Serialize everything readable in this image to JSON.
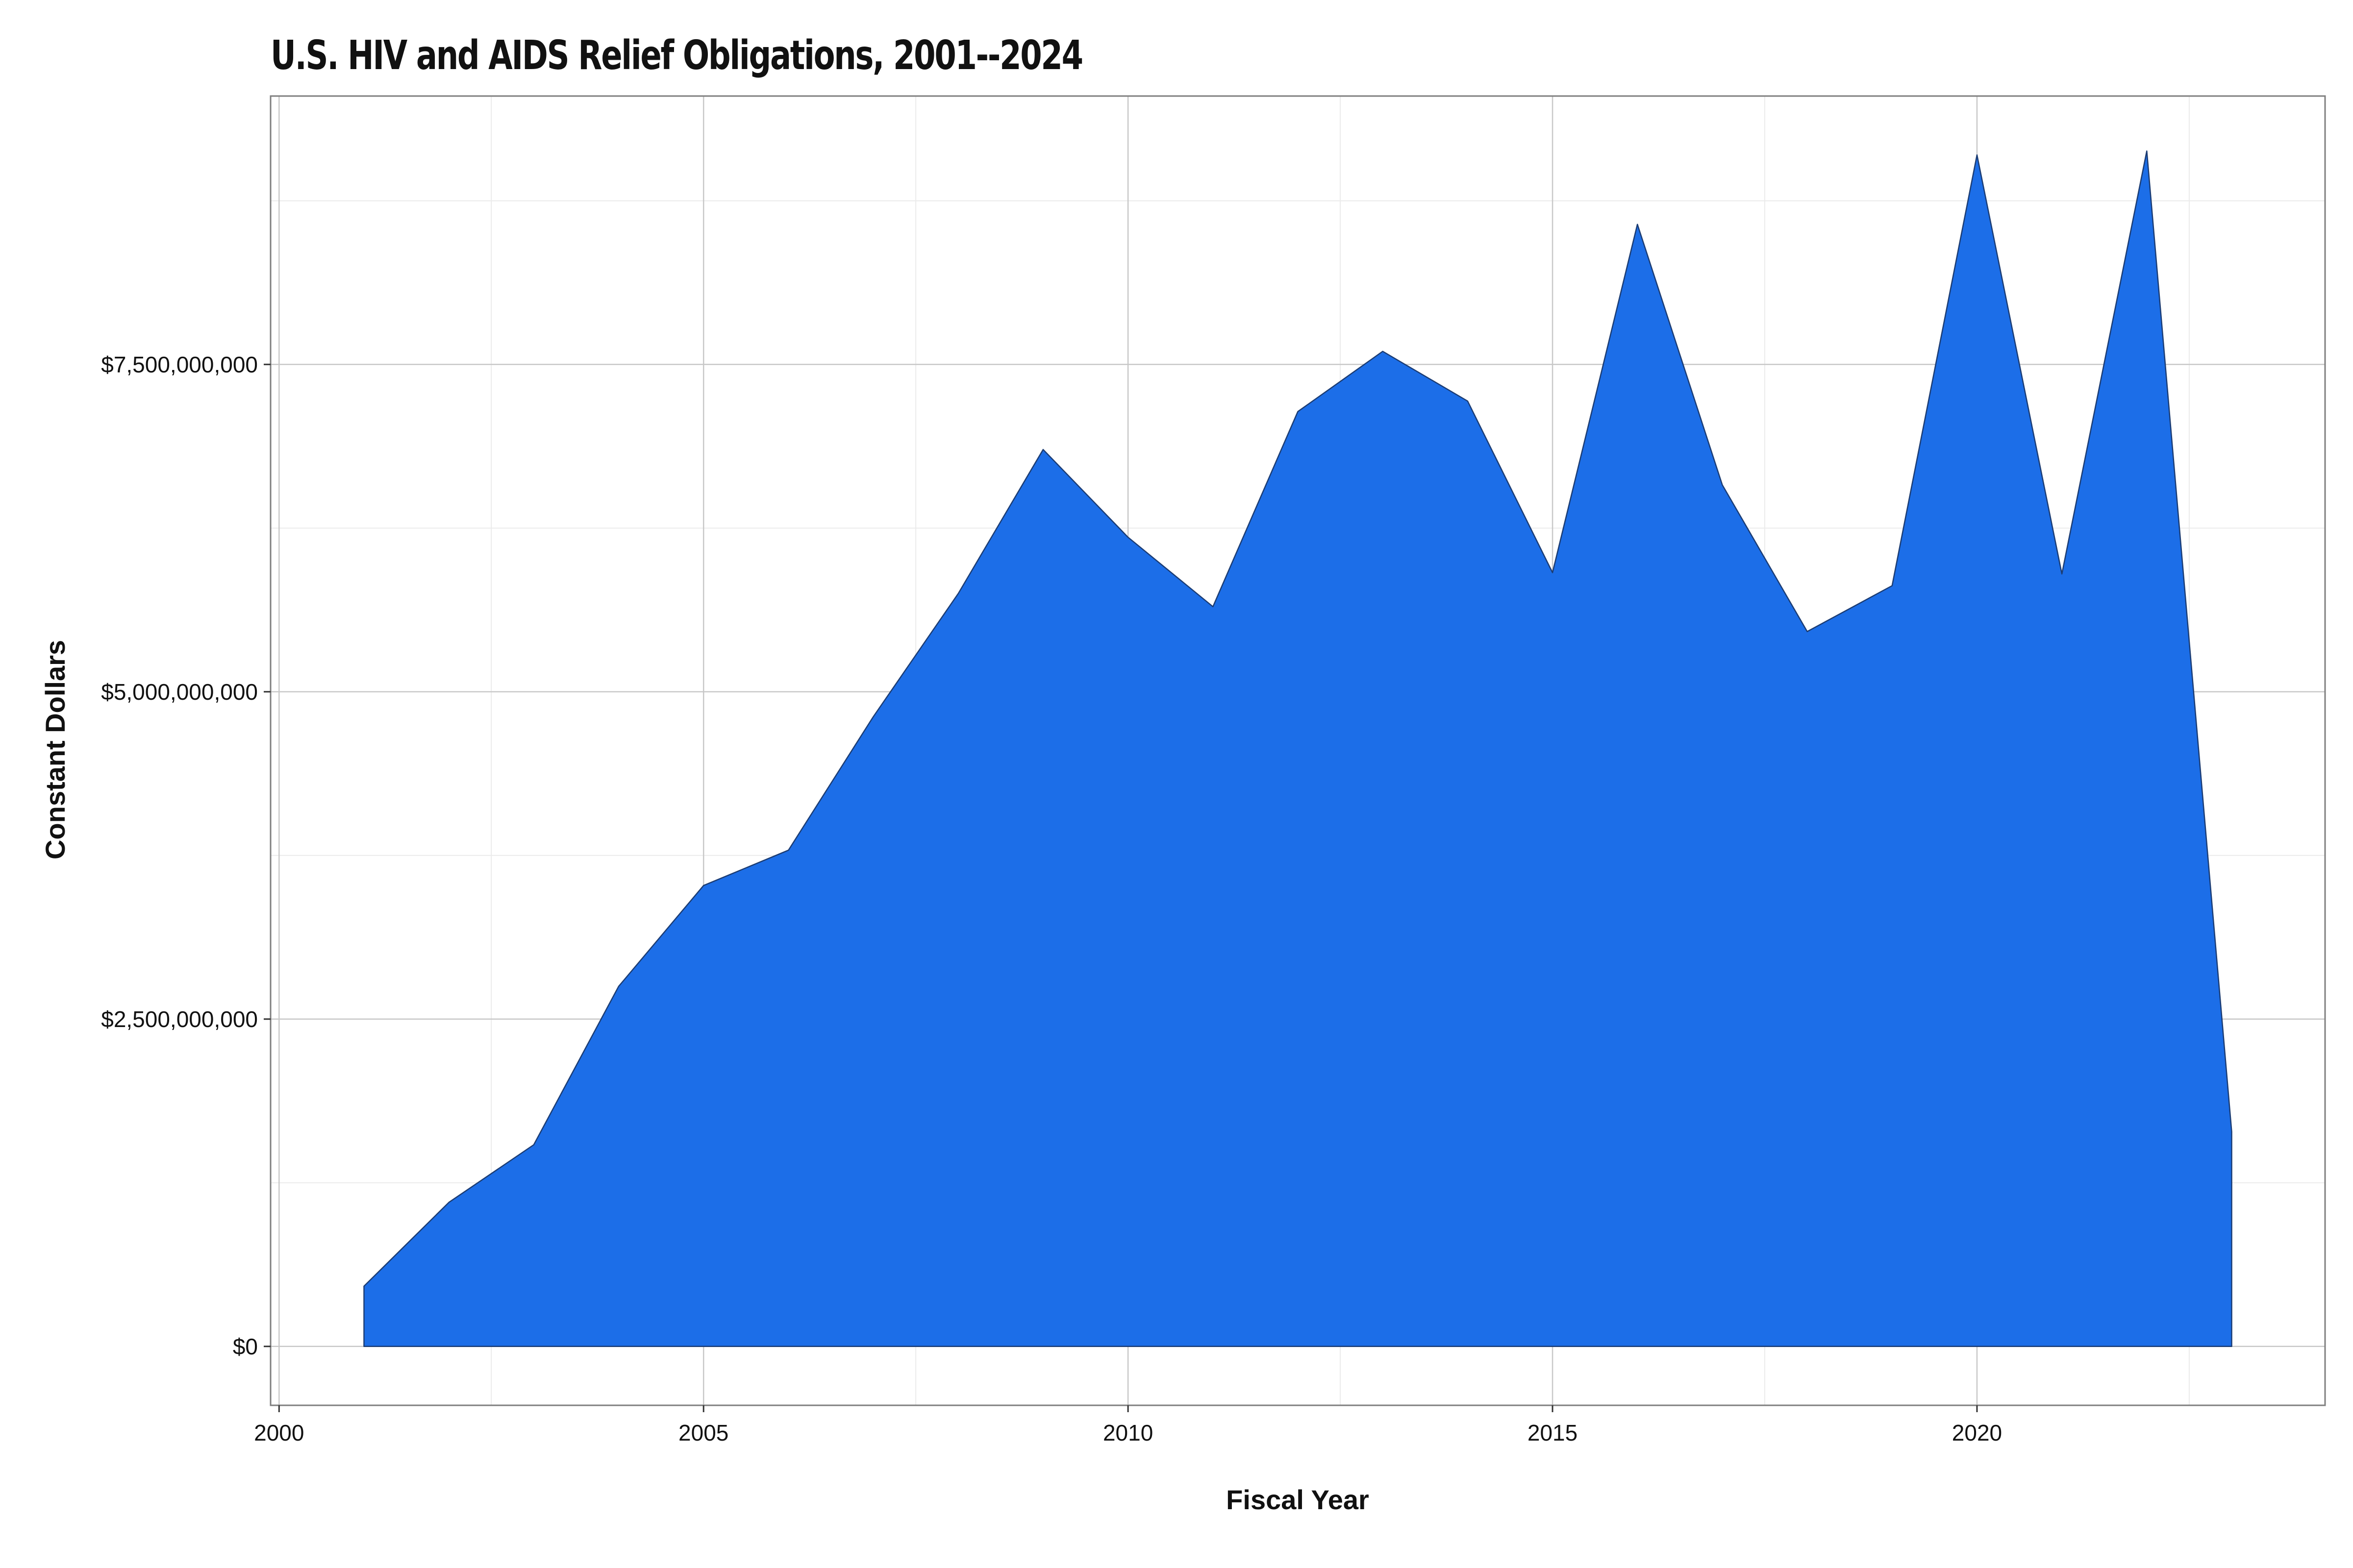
{
  "chart_data": {
    "type": "area",
    "title": "U.S. HIV and AIDS Relief Obligations, 2001--2024",
    "xlabel": "Fiscal Year",
    "ylabel": "Constant Dollars",
    "x": [
      2001,
      2002,
      2003,
      2004,
      2005,
      2006,
      2007,
      2008,
      2009,
      2010,
      2011,
      2012,
      2013,
      2014,
      2015,
      2016,
      2017,
      2018,
      2019,
      2020,
      2021,
      2022,
      2023
    ],
    "series": [
      {
        "values": [
          460000000,
          1100000000,
          1540000000,
          2750000000,
          3520000000,
          3790000000,
          4810000000,
          5750000000,
          6850000000,
          6180000000,
          5650000000,
          7140000000,
          7600000000,
          7220000000,
          5910000000,
          8570000000,
          6580000000,
          5460000000,
          5810000000,
          9100000000,
          5900000000,
          9130000000,
          1640000000
        ]
      }
    ],
    "xlim": [
      1999.9,
      2024.1
    ],
    "ylim": [
      -450000000,
      9550000000
    ],
    "x_ticks": [
      2000,
      2005,
      2010,
      2015,
      2020
    ],
    "x_tick_labels": [
      "2000",
      "2005",
      "2010",
      "2015",
      "2020"
    ],
    "y_ticks": [
      0,
      2500000000,
      5000000000,
      7500000000
    ],
    "y_tick_labels": [
      "$0",
      "$2,500,000,000",
      "$5,000,000,000",
      "$7,500,000,000"
    ],
    "grid": true,
    "colors": {
      "fill": "#1c6ee8",
      "outline": "#1b3c73",
      "grid_major": "#c8c8c8",
      "grid_minor": "#ebebeb",
      "frame": "#7f7f7f"
    }
  }
}
